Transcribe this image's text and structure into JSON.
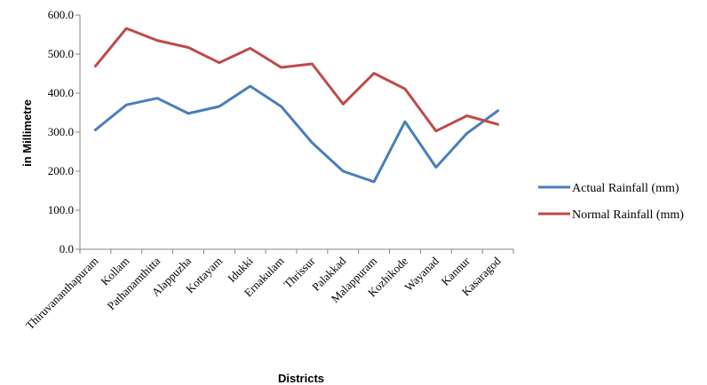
{
  "chart_data": {
    "type": "line",
    "title": "",
    "xlabel": "Districts",
    "ylabel": "in Millimetre",
    "ylim": [
      0,
      600
    ],
    "yticks": [
      "0.0",
      "100.0",
      "200.0",
      "300.0",
      "400.0",
      "500.0",
      "600.0"
    ],
    "categories": [
      "Thiruvananthapuram",
      "Kollam",
      "Pathanamthitta",
      "Alappuzha",
      "Kottayam",
      "Idukki",
      "Ernakulam",
      "Thrissur",
      "Palakkad",
      "Malappuram",
      "Kozhikode",
      "Wayanad",
      "Kannur",
      "Kasaragod"
    ],
    "series": [
      {
        "name": "Actual Rainfall (mm)",
        "color": "#4a7ebb",
        "values": [
          306,
          370,
          387,
          348,
          366,
          418,
          366,
          273,
          200,
          173,
          327,
          210,
          297,
          355
        ]
      },
      {
        "name": "Normal Rainfall (mm)",
        "color": "#be4b48",
        "values": [
          469,
          566,
          535,
          517,
          478,
          515,
          466,
          475,
          372,
          451,
          411,
          303,
          342,
          320
        ]
      }
    ],
    "grid": false,
    "legend_position": "right"
  }
}
